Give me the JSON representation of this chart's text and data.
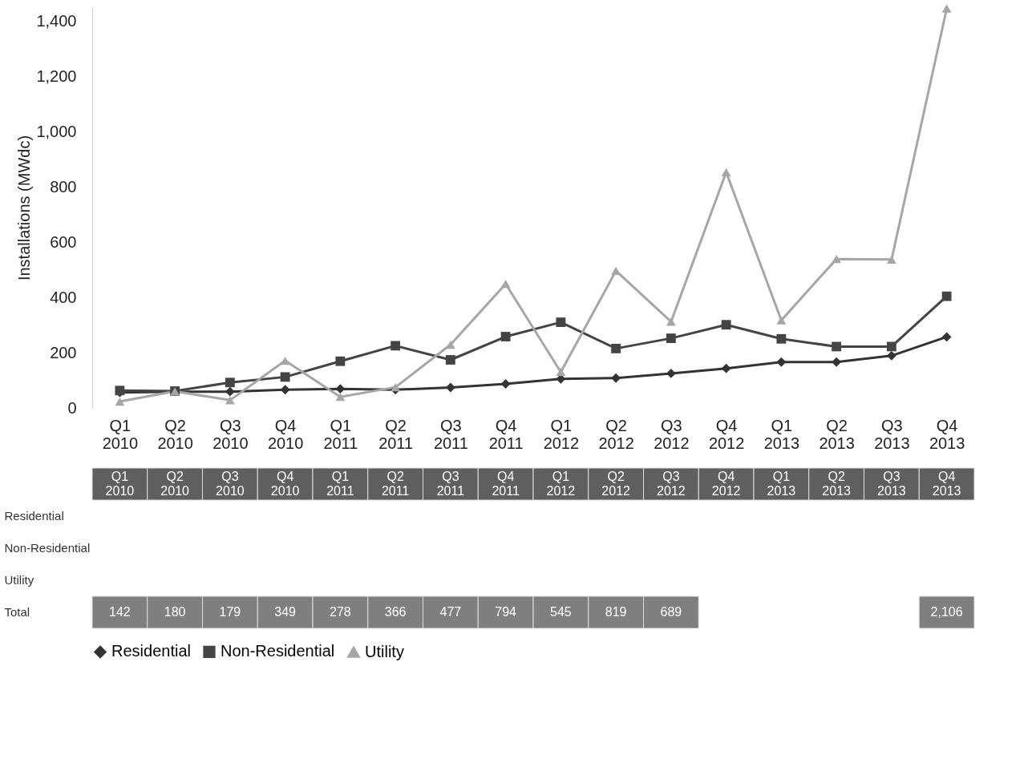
{
  "chart_data": {
    "type": "line",
    "ylabel": "Installations (MWdc)",
    "categories": [
      "Q1 2010",
      "Q2 2010",
      "Q3 2010",
      "Q4 2010",
      "Q1 2011",
      "Q2 2011",
      "Q3 2011",
      "Q4 2011",
      "Q1 2012",
      "Q2 2012",
      "Q3 2012",
      "Q4 2012",
      "Q1 2013",
      "Q2 2013",
      "Q3 2013",
      "Q4 2013"
    ],
    "series": [
      {
        "name": "Residential",
        "color": "#333333",
        "marker": "diamond",
        "values": [
          56,
          59,
          59,
          66,
          69,
          66,
          74,
          87,
          105,
          108,
          125,
          143,
          166,
          166,
          189,
          257
        ]
      },
      {
        "name": "Non-Residential",
        "color": "#444444",
        "marker": "square",
        "values": [
          63,
          61,
          92,
          112,
          169,
          225,
          174,
          258,
          310,
          215,
          252,
          301,
          250,
          222,
          222,
          404
        ]
      },
      {
        "name": "Utility",
        "color": "#a6a6a6",
        "marker": "triangle",
        "values": [
          23,
          60,
          28,
          171,
          40,
          75,
          229,
          449,
          130,
          496,
          312,
          853,
          317,
          539,
          537,
          1445
        ]
      }
    ],
    "totals": [
      "142",
      "180",
      "179",
      "349",
      "278",
      "366",
      "477",
      "794",
      "545",
      "819",
      "689",
      null,
      null,
      null,
      null,
      "2,106"
    ],
    "annotations": [
      "Total"
    ],
    "ylim": [
      0,
      1450
    ],
    "yticks": [
      0,
      200,
      400,
      600,
      800,
      {
        "value": 1000,
        "label": "1,000"
      },
      {
        "value": 1200,
        "label": "1,200"
      },
      {
        "value": 1400,
        "label": "1,400"
      }
    ],
    "grid": false,
    "legend": "bottom",
    "line_style": "solid"
  }
}
